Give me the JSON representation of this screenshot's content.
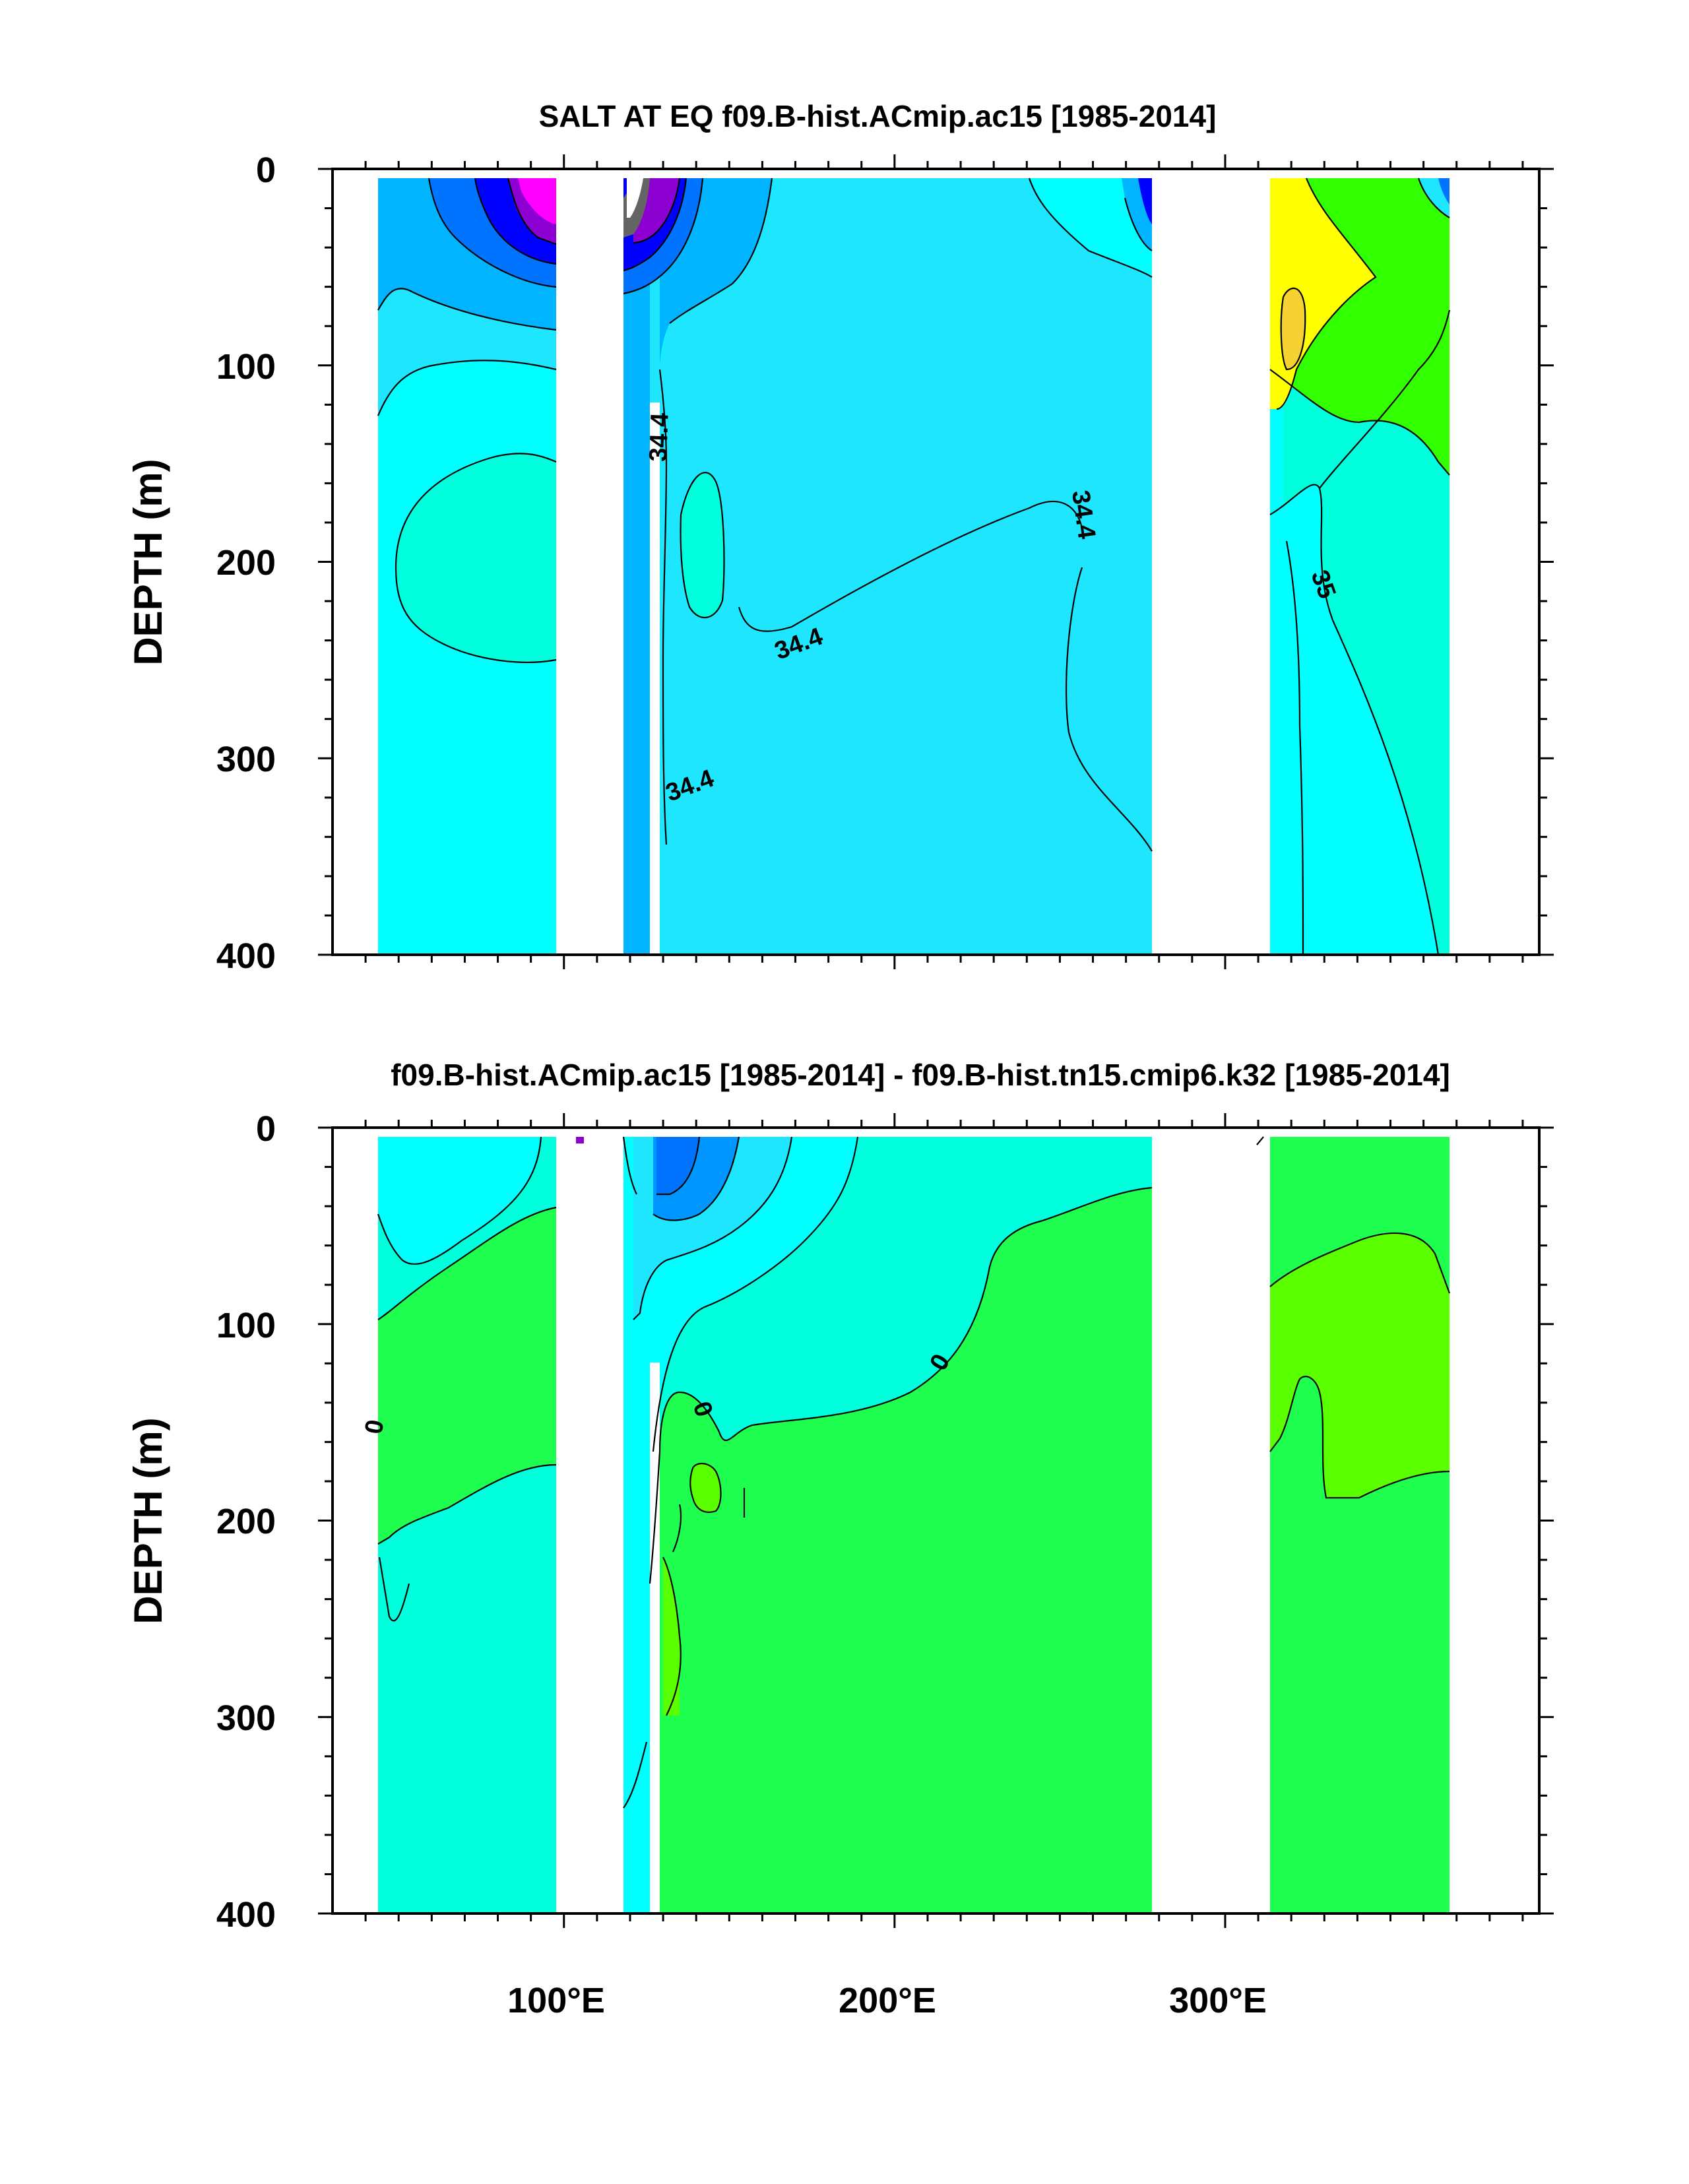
{
  "chart_data": [
    {
      "type": "heatmap",
      "title": "SALT AT EQ f09.B-hist.ACmip.ac15 [1985-2014]",
      "ylabel": "DEPTH (m)",
      "xlabel": "",
      "xlim": [
        30,
        395
      ],
      "ylim": [
        400,
        0
      ],
      "y_ticks": [
        "0",
        "100",
        "200",
        "300",
        "400"
      ],
      "x_ticks": [
        "100°E",
        "200°E",
        "300°E"
      ],
      "contour_labels": [
        {
          "text": "34.4",
          "lon": 131,
          "depth": 140
        },
        {
          "text": "34.4",
          "lon": 252,
          "depth": 185
        },
        {
          "text": "34.4",
          "lon": 158,
          "depth": 238
        },
        {
          "text": "34.4",
          "lon": 133,
          "depth": 310
        },
        {
          "text": "35",
          "lon": 333,
          "depth": 215
        }
      ],
      "colors": {
        "darker_cyan": "#1ee6ff",
        "cyan": "#00ffff",
        "turquoise": "#00ffdc",
        "blue_mid": "#00b4ff",
        "blue_dark": "#0073ff",
        "navy": "#0000ff",
        "purple": "#8c00d2",
        "magenta": "#ff00ff",
        "green": "#32ff00",
        "yellow": "#ffff00",
        "gold": "#f5d232"
      }
    },
    {
      "type": "heatmap",
      "title": "f09.B-hist.ACmip.ac15 [1985-2014] - f09.B-hist.tn15.cmip6.k32 [1985-2014]",
      "ylabel": "DEPTH (m)",
      "xlabel": "",
      "xlim": [
        30,
        395
      ],
      "ylim": [
        400,
        0
      ],
      "y_ticks": [
        "0",
        "100",
        "200",
        "300",
        "400"
      ],
      "x_ticks": [
        "100°E",
        "200°E",
        "300°E"
      ],
      "contour_labels": [
        {
          "text": "0",
          "lon": 48,
          "depth": 157
        },
        {
          "text": "0",
          "lon": 134,
          "depth": 135
        },
        {
          "text": "0",
          "lon": 218,
          "depth": 120
        }
      ],
      "colors": {
        "cyan": "#00ffff",
        "turquoise": "#00ffdc",
        "green": "#1eff50",
        "bright_green": "#5aff00",
        "blue_mid": "#0096ff",
        "darker_cyan": "#1ee6ff",
        "navy": "#0000ff",
        "purple": "#8c00d2"
      }
    }
  ]
}
